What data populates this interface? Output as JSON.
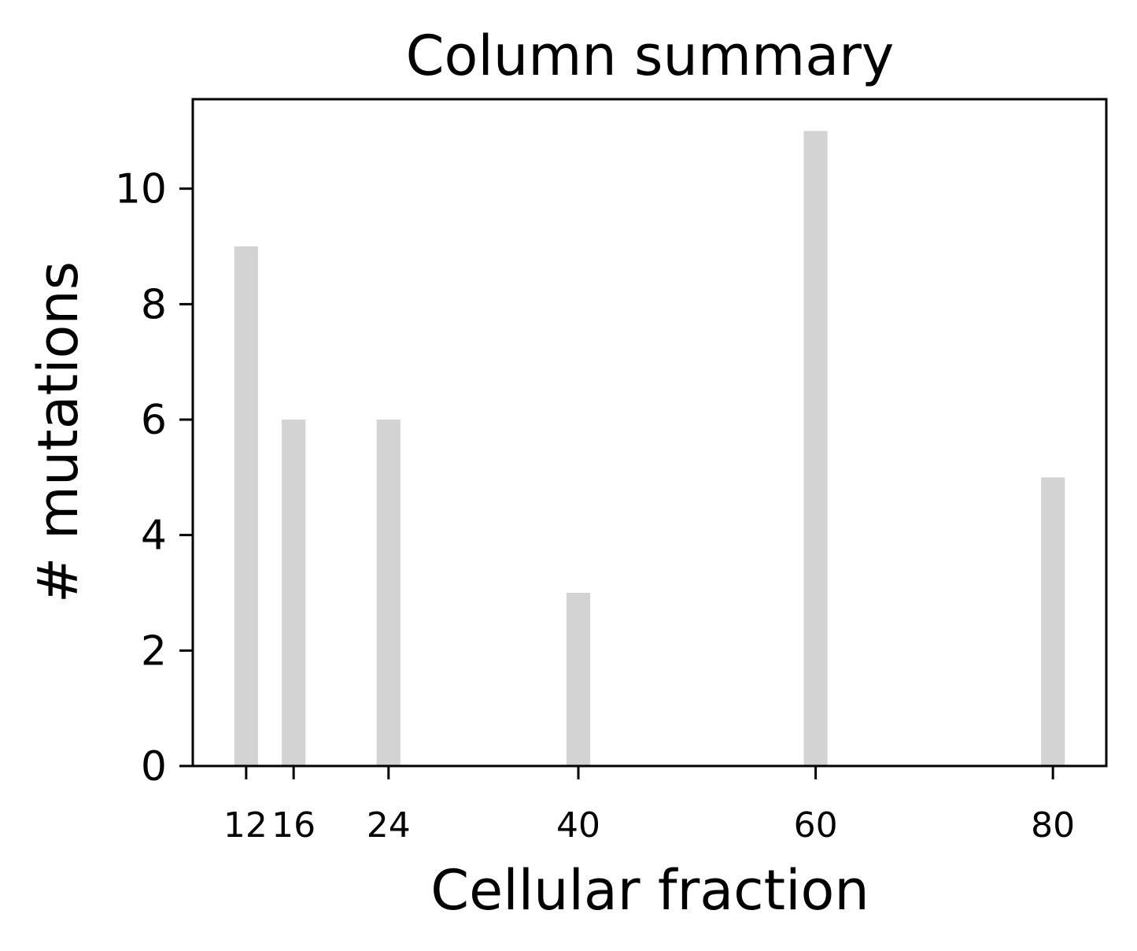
{
  "chart_data": {
    "type": "bar",
    "title": "Column summary",
    "xlabel": "Cellular fraction",
    "ylabel": "# mutations",
    "x": [
      12,
      16,
      24,
      40,
      60,
      80
    ],
    "values": [
      9,
      6,
      6,
      3,
      11,
      5
    ],
    "x_ticks": [
      "12",
      "16",
      "24",
      "40",
      "60",
      "80"
    ],
    "y_ticks": [
      "0",
      "2",
      "4",
      "6",
      "8",
      "10"
    ],
    "xlim": [
      7.5,
      84.5
    ],
    "ylim": [
      0,
      11.55
    ],
    "bar_width": 2,
    "bar_color": "#d3d3d3",
    "grid": false,
    "legend": "none"
  }
}
